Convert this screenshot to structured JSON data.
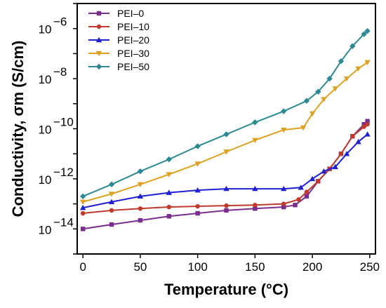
{
  "chart_data": {
    "type": "line",
    "xlabel": "Temperature (°C)",
    "ylabel": "Conductivity, σm (S/cm)",
    "yscale": "log",
    "xlim": [
      -5,
      255
    ],
    "ylim": [
      1e-15,
      1e-05
    ],
    "xticks": [
      0,
      50,
      100,
      150,
      200,
      250
    ],
    "yticks": [
      {
        "value": 1e-14,
        "base": "10",
        "exp": "−14"
      },
      {
        "value": 1e-12,
        "base": "10",
        "exp": "−12"
      },
      {
        "value": 1e-10,
        "base": "10",
        "exp": "−10"
      },
      {
        "value": 1e-08,
        "base": "10",
        "exp": "−8"
      },
      {
        "value": 1e-06,
        "base": "10",
        "exp": "−6"
      }
    ],
    "legend_position": "top-left",
    "series": [
      {
        "name": "PEI–0",
        "color": "#7b2d8f",
        "marker": "square",
        "points": [
          [
            0,
            1e-14
          ],
          [
            25,
            1.5e-14
          ],
          [
            50,
            2.2e-14
          ],
          [
            75,
            3.2e-14
          ],
          [
            100,
            4.2e-14
          ],
          [
            125,
            5.5e-14
          ],
          [
            150,
            6.5e-14
          ],
          [
            175,
            7.5e-14
          ],
          [
            185,
            9e-14
          ],
          [
            195,
            2e-13
          ],
          [
            205,
            8e-13
          ],
          [
            215,
            2.5e-12
          ],
          [
            225,
            1e-11
          ],
          [
            235,
            5e-11
          ],
          [
            245,
            1.5e-10
          ],
          [
            248,
            2e-10
          ]
        ]
      },
      {
        "name": "PEI–10",
        "color": "#c0392b",
        "marker": "circle",
        "points": [
          [
            0,
            4.2e-14
          ],
          [
            25,
            5.5e-14
          ],
          [
            50,
            6.5e-14
          ],
          [
            75,
            7.5e-14
          ],
          [
            100,
            8e-14
          ],
          [
            125,
            8.5e-14
          ],
          [
            150,
            9e-14
          ],
          [
            175,
            1e-13
          ],
          [
            188,
            1.5e-13
          ],
          [
            195,
            3e-13
          ],
          [
            205,
            8e-13
          ],
          [
            215,
            2.5e-12
          ],
          [
            225,
            1e-11
          ],
          [
            235,
            5e-11
          ],
          [
            245,
            1.2e-10
          ],
          [
            248,
            1.5e-10
          ]
        ]
      },
      {
        "name": "PEI–20",
        "color": "#1f1fd6",
        "marker": "triangle-up",
        "points": [
          [
            0,
            7e-14
          ],
          [
            25,
            1.2e-13
          ],
          [
            50,
            2e-13
          ],
          [
            75,
            2.8e-13
          ],
          [
            100,
            3.5e-13
          ],
          [
            125,
            4e-13
          ],
          [
            150,
            4e-13
          ],
          [
            175,
            4e-13
          ],
          [
            190,
            4.5e-13
          ],
          [
            200,
            1e-12
          ],
          [
            210,
            2e-12
          ],
          [
            220,
            3e-12
          ],
          [
            230,
            1e-11
          ],
          [
            240,
            3e-11
          ],
          [
            248,
            6e-11
          ]
        ]
      },
      {
        "name": "PEI–30",
        "color": "#e0a020",
        "marker": "triangle-down",
        "points": [
          [
            0,
            1.2e-13
          ],
          [
            25,
            2.5e-13
          ],
          [
            50,
            6e-13
          ],
          [
            75,
            1.5e-12
          ],
          [
            100,
            4e-12
          ],
          [
            125,
            1.2e-11
          ],
          [
            150,
            3.5e-11
          ],
          [
            175,
            9e-11
          ],
          [
            192,
            1.1e-10
          ],
          [
            200,
            4e-10
          ],
          [
            210,
            1.5e-09
          ],
          [
            220,
            4e-09
          ],
          [
            230,
            1e-08
          ],
          [
            240,
            2.5e-08
          ],
          [
            248,
            4.5e-08
          ]
        ]
      },
      {
        "name": "PEI–50",
        "color": "#2a8a94",
        "marker": "diamond",
        "points": [
          [
            0,
            2e-13
          ],
          [
            25,
            6e-13
          ],
          [
            50,
            2e-12
          ],
          [
            75,
            6e-12
          ],
          [
            100,
            2e-11
          ],
          [
            125,
            6e-11
          ],
          [
            150,
            1.8e-10
          ],
          [
            175,
            5e-10
          ],
          [
            195,
            1.3e-09
          ],
          [
            205,
            3e-09
          ],
          [
            215,
            1e-08
          ],
          [
            225,
            5e-08
          ],
          [
            235,
            2e-07
          ],
          [
            245,
            6e-07
          ],
          [
            248,
            8e-07
          ]
        ]
      }
    ]
  }
}
